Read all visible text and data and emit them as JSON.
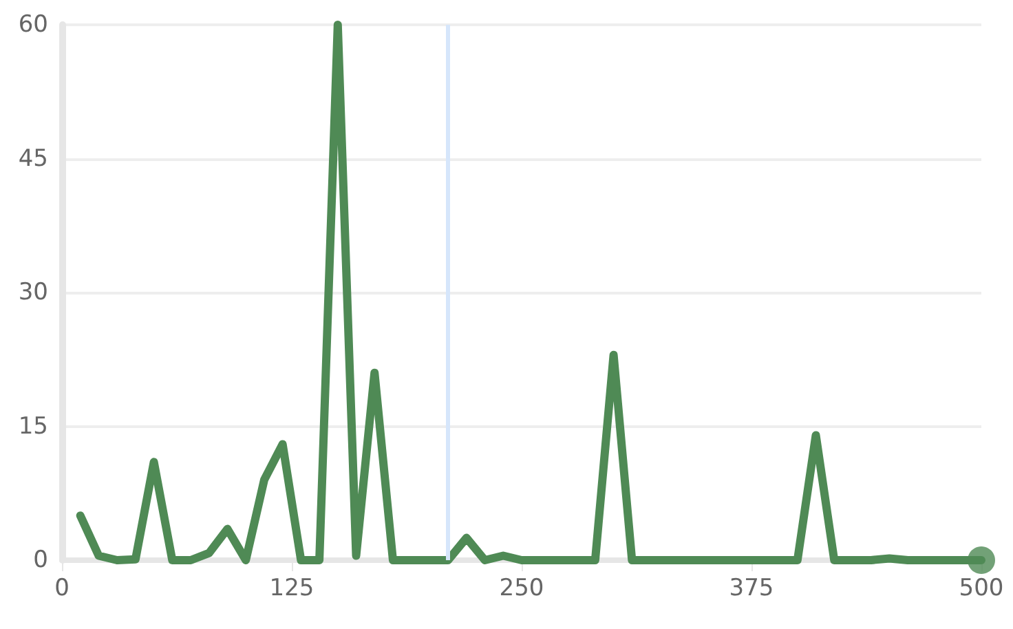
{
  "chart_data": {
    "type": "line",
    "x": [
      10,
      20,
      30,
      40,
      50,
      60,
      70,
      80,
      90,
      100,
      110,
      120,
      130,
      140,
      150,
      160,
      170,
      180,
      190,
      200,
      210,
      220,
      230,
      240,
      250,
      260,
      270,
      280,
      290,
      300,
      310,
      320,
      330,
      340,
      350,
      360,
      370,
      380,
      390,
      400,
      410,
      420,
      430,
      440,
      450,
      460,
      470,
      480,
      490,
      500
    ],
    "series": [
      {
        "color": "#4f8a55",
        "marker": "none",
        "values": [
          5,
          0.5,
          0,
          0.1,
          11,
          0,
          0,
          0.8,
          3.5,
          0,
          9,
          13,
          0,
          0,
          60,
          0.5,
          21,
          0,
          0,
          0,
          0,
          2.5,
          0,
          0.5,
          0,
          0,
          0,
          0,
          0,
          23,
          0,
          0,
          0,
          0,
          0,
          0,
          0,
          0,
          0,
          0,
          14,
          0,
          0,
          0,
          0.2,
          0,
          0,
          0,
          0,
          0
        ]
      },
      {
        "type": "scatter",
        "color": "#4f8a55",
        "marker": "circle",
        "x": [
          500
        ],
        "values": [
          0
        ]
      }
    ],
    "ref_lines": [
      {
        "axis": "x",
        "value": 210,
        "color": "#d6e6fb"
      }
    ],
    "xlim": [
      0,
      500
    ],
    "xticks": [
      0,
      125,
      250,
      375,
      500
    ],
    "ylim": [
      0,
      60
    ],
    "yticks": [
      0,
      15,
      30,
      45,
      60
    ],
    "grid": "y",
    "line_style": "solid"
  }
}
